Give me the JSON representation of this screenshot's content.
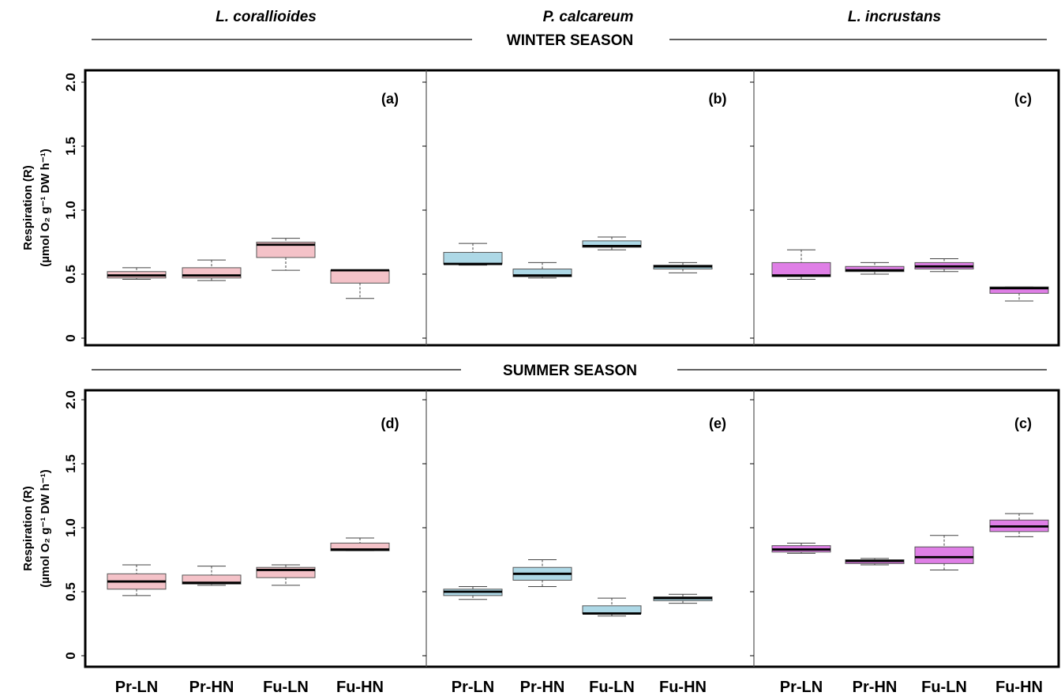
{
  "chart_data": {
    "type": "boxplot",
    "species": [
      "L. corallioides",
      "P. calcareum",
      "L. incrustans"
    ],
    "seasons": [
      "WINTER SEASON",
      "SUMMER SEASON"
    ],
    "ylabel_line1": "Respiration (R)",
    "ylabel_line2": "(µmol O₂ g⁻¹ DW h⁻¹)",
    "ylim": [
      0,
      2.0
    ],
    "yticks": [
      0,
      0.5,
      1.0,
      1.5,
      2.0
    ],
    "ytick_labels": [
      "0",
      "0.5",
      "1.0",
      "1.5",
      "2.0"
    ],
    "categories": [
      "Pr-LN",
      "Pr-HN",
      "Fu-LN",
      "Fu-HN"
    ],
    "colors": {
      "L. corallioides": "#f4c2c8",
      "P. calcareum": "#add8e6",
      "L. incrustans": "#df7fe6"
    },
    "panels": [
      {
        "label": "(a)",
        "season": "WINTER SEASON",
        "species": "L. corallioides",
        "boxes": [
          {
            "category": "Pr-LN",
            "min": 0.46,
            "q1": 0.47,
            "median": 0.49,
            "q3": 0.52,
            "max": 0.55
          },
          {
            "category": "Pr-HN",
            "min": 0.45,
            "q1": 0.47,
            "median": 0.49,
            "q3": 0.55,
            "max": 0.61
          },
          {
            "category": "Fu-LN",
            "min": 0.53,
            "q1": 0.63,
            "median": 0.73,
            "q3": 0.75,
            "max": 0.78
          },
          {
            "category": "Fu-HN",
            "min": 0.31,
            "q1": 0.43,
            "median": 0.53,
            "q3": 0.53,
            "max": 0.53
          }
        ]
      },
      {
        "label": "(b)",
        "season": "WINTER SEASON",
        "species": "P. calcareum",
        "boxes": [
          {
            "category": "Pr-LN",
            "min": 0.57,
            "q1": 0.58,
            "median": 0.58,
            "q3": 0.67,
            "max": 0.74
          },
          {
            "category": "Pr-HN",
            "min": 0.47,
            "q1": 0.48,
            "median": 0.49,
            "q3": 0.54,
            "max": 0.59
          },
          {
            "category": "Fu-LN",
            "min": 0.69,
            "q1": 0.71,
            "median": 0.72,
            "q3": 0.76,
            "max": 0.79
          },
          {
            "category": "Fu-HN",
            "min": 0.51,
            "q1": 0.54,
            "median": 0.56,
            "q3": 0.57,
            "max": 0.59
          }
        ]
      },
      {
        "label": "(c)",
        "season": "WINTER SEASON",
        "species": "L. incrustans",
        "boxes": [
          {
            "category": "Pr-LN",
            "min": 0.46,
            "q1": 0.48,
            "median": 0.49,
            "q3": 0.59,
            "max": 0.69
          },
          {
            "category": "Pr-HN",
            "min": 0.5,
            "q1": 0.52,
            "median": 0.53,
            "q3": 0.56,
            "max": 0.59
          },
          {
            "category": "Fu-LN",
            "min": 0.52,
            "q1": 0.54,
            "median": 0.56,
            "q3": 0.59,
            "max": 0.62
          },
          {
            "category": "Fu-HN",
            "min": 0.29,
            "q1": 0.35,
            "median": 0.39,
            "q3": 0.4,
            "max": 0.4
          }
        ]
      },
      {
        "label": "(d)",
        "season": "SUMMER SEASON",
        "species": "L. corallioides",
        "boxes": [
          {
            "category": "Pr-LN",
            "min": 0.47,
            "q1": 0.52,
            "median": 0.58,
            "q3": 0.64,
            "max": 0.71
          },
          {
            "category": "Pr-HN",
            "min": 0.55,
            "q1": 0.56,
            "median": 0.57,
            "q3": 0.63,
            "max": 0.7
          },
          {
            "category": "Fu-LN",
            "min": 0.55,
            "q1": 0.61,
            "median": 0.67,
            "q3": 0.69,
            "max": 0.71
          },
          {
            "category": "Fu-HN",
            "min": 0.82,
            "q1": 0.82,
            "median": 0.83,
            "q3": 0.88,
            "max": 0.92
          }
        ]
      },
      {
        "label": "(e)",
        "season": "SUMMER SEASON",
        "species": "P. calcareum",
        "boxes": [
          {
            "category": "Pr-LN",
            "min": 0.44,
            "q1": 0.47,
            "median": 0.5,
            "q3": 0.52,
            "max": 0.54
          },
          {
            "category": "Pr-HN",
            "min": 0.54,
            "q1": 0.59,
            "median": 0.64,
            "q3": 0.69,
            "max": 0.75
          },
          {
            "category": "Fu-LN",
            "min": 0.31,
            "q1": 0.33,
            "median": 0.33,
            "q3": 0.39,
            "max": 0.45
          },
          {
            "category": "Fu-HN",
            "min": 0.41,
            "q1": 0.43,
            "median": 0.45,
            "q3": 0.46,
            "max": 0.48
          }
        ]
      },
      {
        "label": "(c)",
        "season": "SUMMER SEASON",
        "species": "L. incrustans",
        "boxes": [
          {
            "category": "Pr-LN",
            "min": 0.8,
            "q1": 0.81,
            "median": 0.83,
            "q3": 0.86,
            "max": 0.88
          },
          {
            "category": "Pr-HN",
            "min": 0.71,
            "q1": 0.72,
            "median": 0.74,
            "q3": 0.75,
            "max": 0.76
          },
          {
            "category": "Fu-LN",
            "min": 0.67,
            "q1": 0.72,
            "median": 0.77,
            "q3": 0.85,
            "max": 0.94
          },
          {
            "category": "Fu-HN",
            "min": 0.93,
            "q1": 0.97,
            "median": 1.01,
            "q3": 1.06,
            "max": 1.11
          }
        ]
      }
    ]
  }
}
